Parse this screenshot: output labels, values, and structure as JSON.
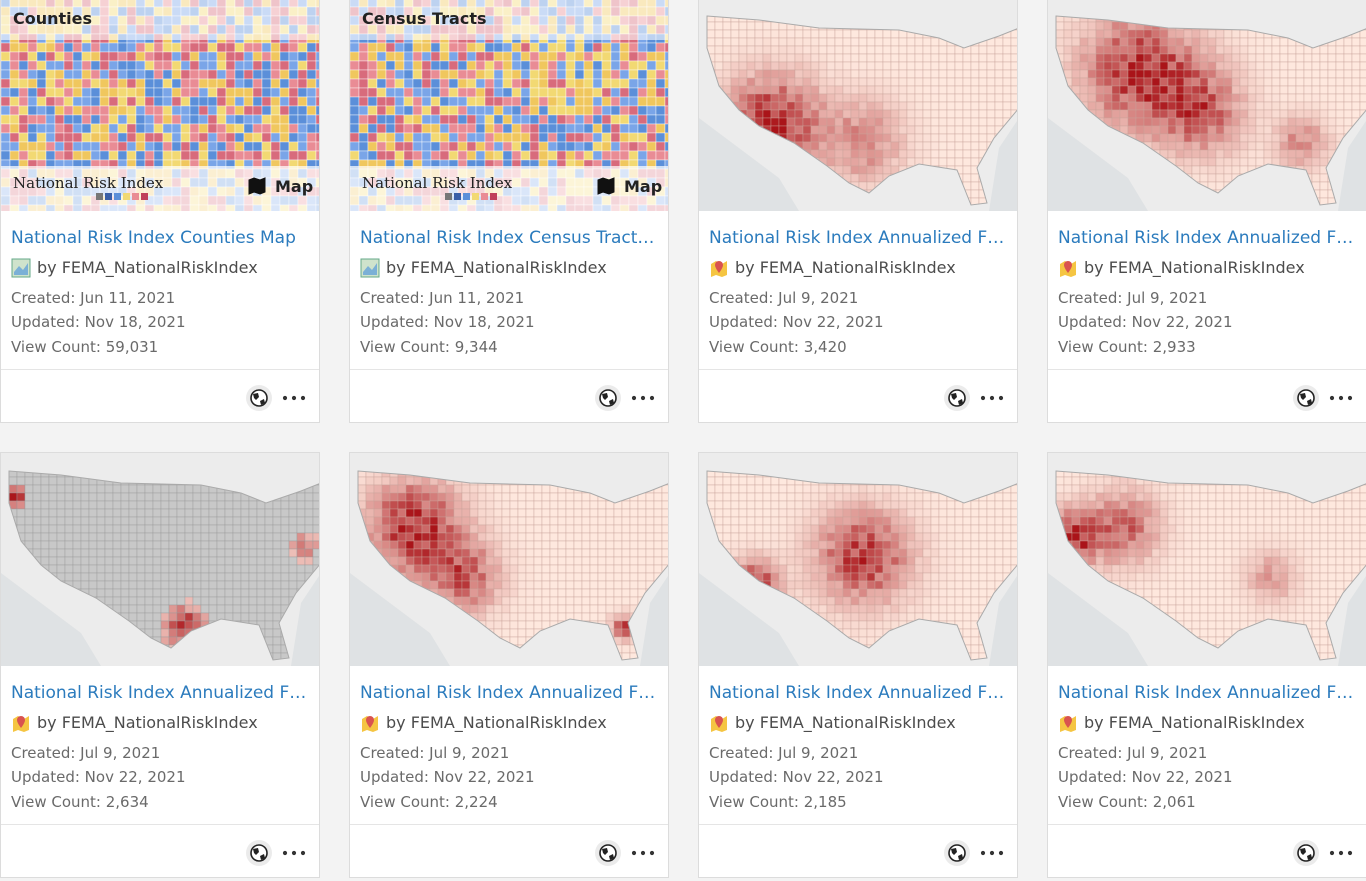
{
  "cards": [
    {
      "title": "National Risk Index Counties Map",
      "owner": "by FEMA_NationalRiskIndex",
      "created": "Created: Jun 11, 2021",
      "updated": "Updated: Nov 18, 2021",
      "views": "View Count: 59,031",
      "thumbnail": {
        "label": "Counties",
        "brand": "National Risk Index",
        "kind": "Map"
      }
    },
    {
      "title": "National Risk Index Census Tract…",
      "owner": "by FEMA_NationalRiskIndex",
      "created": "Created: Jun 11, 2021",
      "updated": "Updated: Nov 18, 2021",
      "views": "View Count: 9,344",
      "thumbnail": {
        "label": "Census Tracts",
        "brand": "National Risk Index",
        "kind": "Map"
      }
    },
    {
      "title": "National Risk Index Annualized F…",
      "owner": "by FEMA_NationalRiskIndex",
      "created": "Created: Jul 9, 2021",
      "updated": "Updated: Nov 22, 2021",
      "views": "View Count: 3,420"
    },
    {
      "title": "National Risk Index Annualized F…",
      "owner": "by FEMA_NationalRiskIndex",
      "created": "Created: Jul 9, 2021",
      "updated": "Updated: Nov 22, 2021",
      "views": "View Count: 2,933"
    },
    {
      "title": "National Risk Index Annualized F…",
      "owner": "by FEMA_NationalRiskIndex",
      "created": "Created: Jul 9, 2021",
      "updated": "Updated: Nov 22, 2021",
      "views": "View Count: 2,634"
    },
    {
      "title": "National Risk Index Annualized F…",
      "owner": "by FEMA_NationalRiskIndex",
      "created": "Created: Jul 9, 2021",
      "updated": "Updated: Nov 22, 2021",
      "views": "View Count: 2,224"
    },
    {
      "title": "National Risk Index Annualized F…",
      "owner": "by FEMA_NationalRiskIndex",
      "created": "Created: Jul 9, 2021",
      "updated": "Updated: Nov 22, 2021",
      "views": "View Count: 2,185"
    },
    {
      "title": "National Risk Index Annualized F…",
      "owner": "by FEMA_NationalRiskIndex",
      "created": "Created: Jul 9, 2021",
      "updated": "Updated: Nov 22, 2021",
      "views": "View Count: 2,061"
    }
  ]
}
